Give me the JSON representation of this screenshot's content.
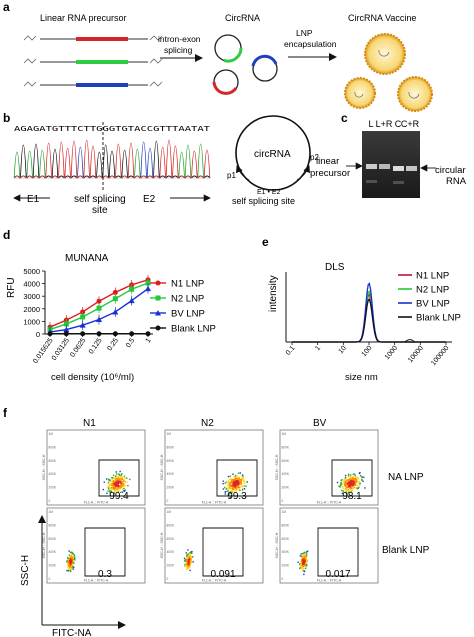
{
  "panel_letters": {
    "a": "a",
    "b": "b",
    "c": "c",
    "d": "d",
    "e": "e",
    "f": "f"
  },
  "panel_a": {
    "precursor_label": "Linear RNA precursor",
    "arrow1_label_line1": "intron-exon",
    "arrow1_label_line2": "splicing",
    "circrna_label": "CircRNA",
    "arrow2_label_line1": "LNP",
    "arrow2_label_line2": "encapsulation",
    "vaccine_label": "CircRNA Vaccine",
    "colors": {
      "red": "#d62728",
      "green": "#2ecc40",
      "blue": "#1f3fbf",
      "lnp_shell": "#f0b429",
      "lnp_core": "#f7d774"
    }
  },
  "panel_b": {
    "sequence": "AGAGATGTTTCTTGGGTGTACCGTTTAATAT",
    "e1_label": "E1",
    "e2_label": "E2",
    "site_label_line1": "self splicing",
    "site_label_line2": "site",
    "circ_label": "circRNA",
    "p1_label": "p1",
    "p2_label": "p2",
    "junction_label": "E1 • E2",
    "circ_site_label": "self splicing site"
  },
  "panel_c": {
    "lanes": [
      "L",
      "L+R",
      "C",
      "C+R"
    ],
    "left_label_line1": "linear",
    "left_label_line2": "precursor",
    "right_label_line1": "circular",
    "right_label_line2": "RNA"
  },
  "panel_d": {
    "chart_data": {
      "type": "line",
      "title": "MUNANA",
      "xlabel": "cell density (10⁶/ml)",
      "ylabel": "RFU",
      "categories": [
        "0.015625",
        "0.03125",
        "0.0625",
        "0.125",
        "0.25",
        "0.5",
        "1"
      ],
      "ylim": [
        0,
        5000
      ],
      "yticks": [
        "0",
        "1000",
        "2000",
        "3000",
        "4000",
        "5000"
      ],
      "legend_position": "top-right",
      "series": [
        {
          "name": "N1 LNP",
          "color": "#e31a1c",
          "marker": "circle",
          "values": [
            550,
            1100,
            1750,
            2600,
            3300,
            3900,
            4300
          ]
        },
        {
          "name": "N2 LNP",
          "color": "#22c93a",
          "marker": "square",
          "values": [
            350,
            800,
            1350,
            2050,
            2800,
            3550,
            4050
          ]
        },
        {
          "name": "BV LNP",
          "color": "#1a2fd6",
          "marker": "triangle",
          "values": [
            150,
            350,
            700,
            1150,
            1750,
            2650,
            3600
          ]
        },
        {
          "name": "Blank LNP",
          "color": "#111111",
          "marker": "circle",
          "values": [
            20,
            20,
            20,
            20,
            20,
            20,
            20
          ]
        }
      ]
    }
  },
  "panel_e": {
    "chart_data": {
      "type": "line",
      "title": "DLS",
      "xlabel": "size nm",
      "ylabel": "intensity",
      "x_scale": "log",
      "xticks": [
        "0.1",
        "1",
        "10",
        "100",
        "1000",
        "10000",
        "100000"
      ],
      "legend_position": "top-right",
      "series": [
        {
          "name": "N1 LNP",
          "color": "#c0103a",
          "peak_x": 100,
          "peak_y": 15
        },
        {
          "name": "N2 LNP",
          "color": "#22c93a",
          "peak_x": 100,
          "peak_y": 16
        },
        {
          "name": "BV LNP",
          "color": "#1a2fd6",
          "peak_x": 100,
          "peak_y": 18.5
        },
        {
          "name": "Blank LNP",
          "color": "#111111",
          "peak_x": 100,
          "peak_y": 13.5
        }
      ]
    }
  },
  "panel_f": {
    "columns": [
      "N1",
      "N2",
      "BV"
    ],
    "rows": [
      "NA LNP",
      "Blank LNP"
    ],
    "values": [
      [
        "99.4",
        "99.3",
        "98.1"
      ],
      [
        "0.3",
        "0.091",
        "0.017"
      ]
    ],
    "ylabel": "SSC-H",
    "xlabel": "FITC-NA",
    "tiny_axis_y": "SSC-H :: SSC-H",
    "tiny_axis_x": "FL1-A :: FITC-A"
  }
}
